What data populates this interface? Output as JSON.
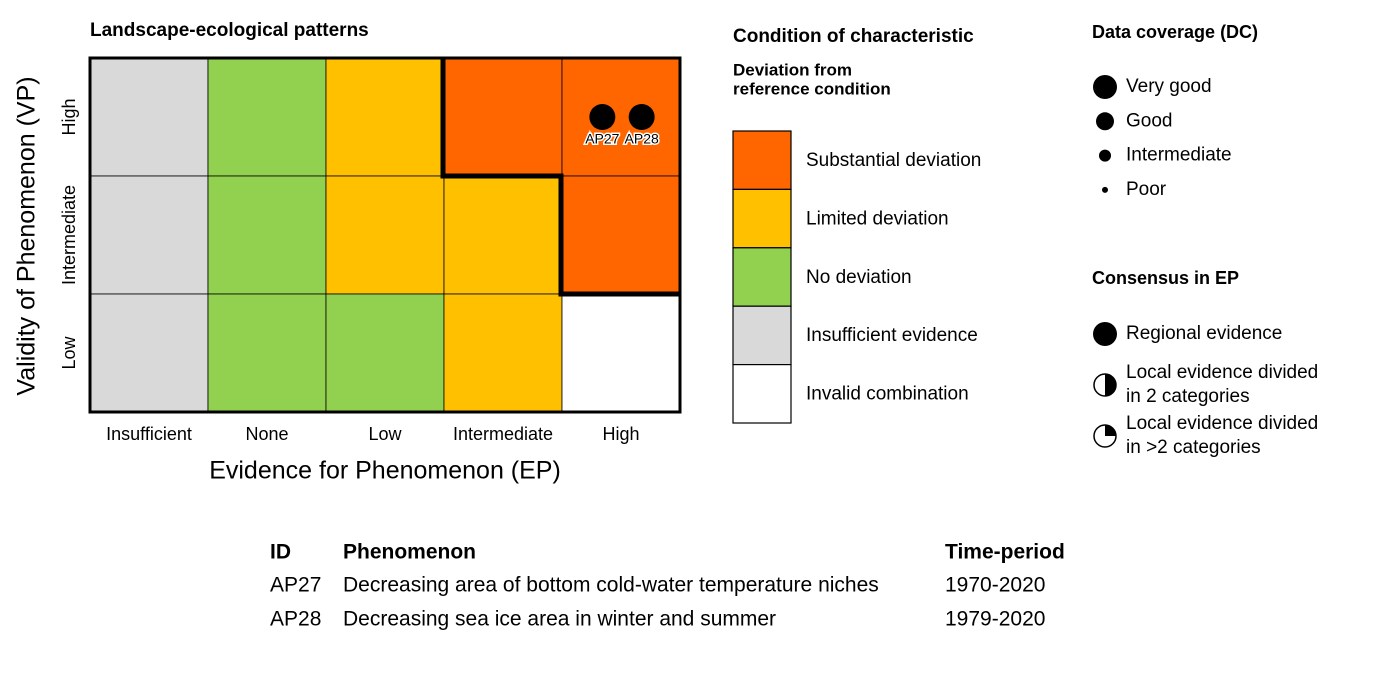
{
  "title": "Landscape-ecological patterns",
  "y_axis": {
    "label": "Validity of Phenomenon (VP)",
    "levels": [
      "High",
      "Intermediate",
      "Low"
    ]
  },
  "x_axis": {
    "label": "Evidence for Phenomenon (EP)",
    "levels": [
      "Insufficient",
      "None",
      "Low",
      "Intermediate",
      "High"
    ]
  },
  "cells": [
    [
      "#d9d9d9",
      "#92d050",
      "#ffc000",
      "#ff6600",
      "#ff6600"
    ],
    [
      "#d9d9d9",
      "#92d050",
      "#ffc000",
      "#ffc000",
      "#ff6600"
    ],
    [
      "#d9d9d9",
      "#92d050",
      "#92d050",
      "#ffc000",
      "#ffffff"
    ]
  ],
  "points": [
    {
      "label": "AP27",
      "vp": "High",
      "ep": "High"
    },
    {
      "label": "AP28",
      "vp": "High",
      "ep": "High"
    }
  ],
  "legend": {
    "title": "Condition of characteristic",
    "subtitle": [
      "Deviation from",
      "reference condition"
    ],
    "items": [
      {
        "label": "Substantial deviation",
        "color": "#ff6600"
      },
      {
        "label": "Limited deviation",
        "color": "#ffc000"
      },
      {
        "label": "No deviation",
        "color": "#92d050"
      },
      {
        "label": "Insufficient evidence",
        "color": "#d9d9d9"
      },
      {
        "label": "Invalid combination",
        "color": "#ffffff"
      }
    ]
  },
  "data_coverage": {
    "title": "Data coverage (DC)",
    "items": [
      "Very good",
      "Good",
      "Intermediate",
      "Poor"
    ]
  },
  "consensus": {
    "title": "Consensus in EP",
    "items": [
      [
        "Regional evidence"
      ],
      [
        "Local evidence divided",
        "in 2 categories"
      ],
      [
        "Local evidence divided",
        "in >2 categories"
      ]
    ]
  },
  "table": {
    "header": [
      "ID",
      "Phenomenon",
      "Time-period"
    ],
    "rows": [
      [
        "AP27",
        "Decreasing area of bottom cold-water temperature niches",
        "1970-2020"
      ],
      [
        "AP28",
        "Decreasing sea ice area in winter and summer",
        "1979-2020"
      ]
    ]
  }
}
